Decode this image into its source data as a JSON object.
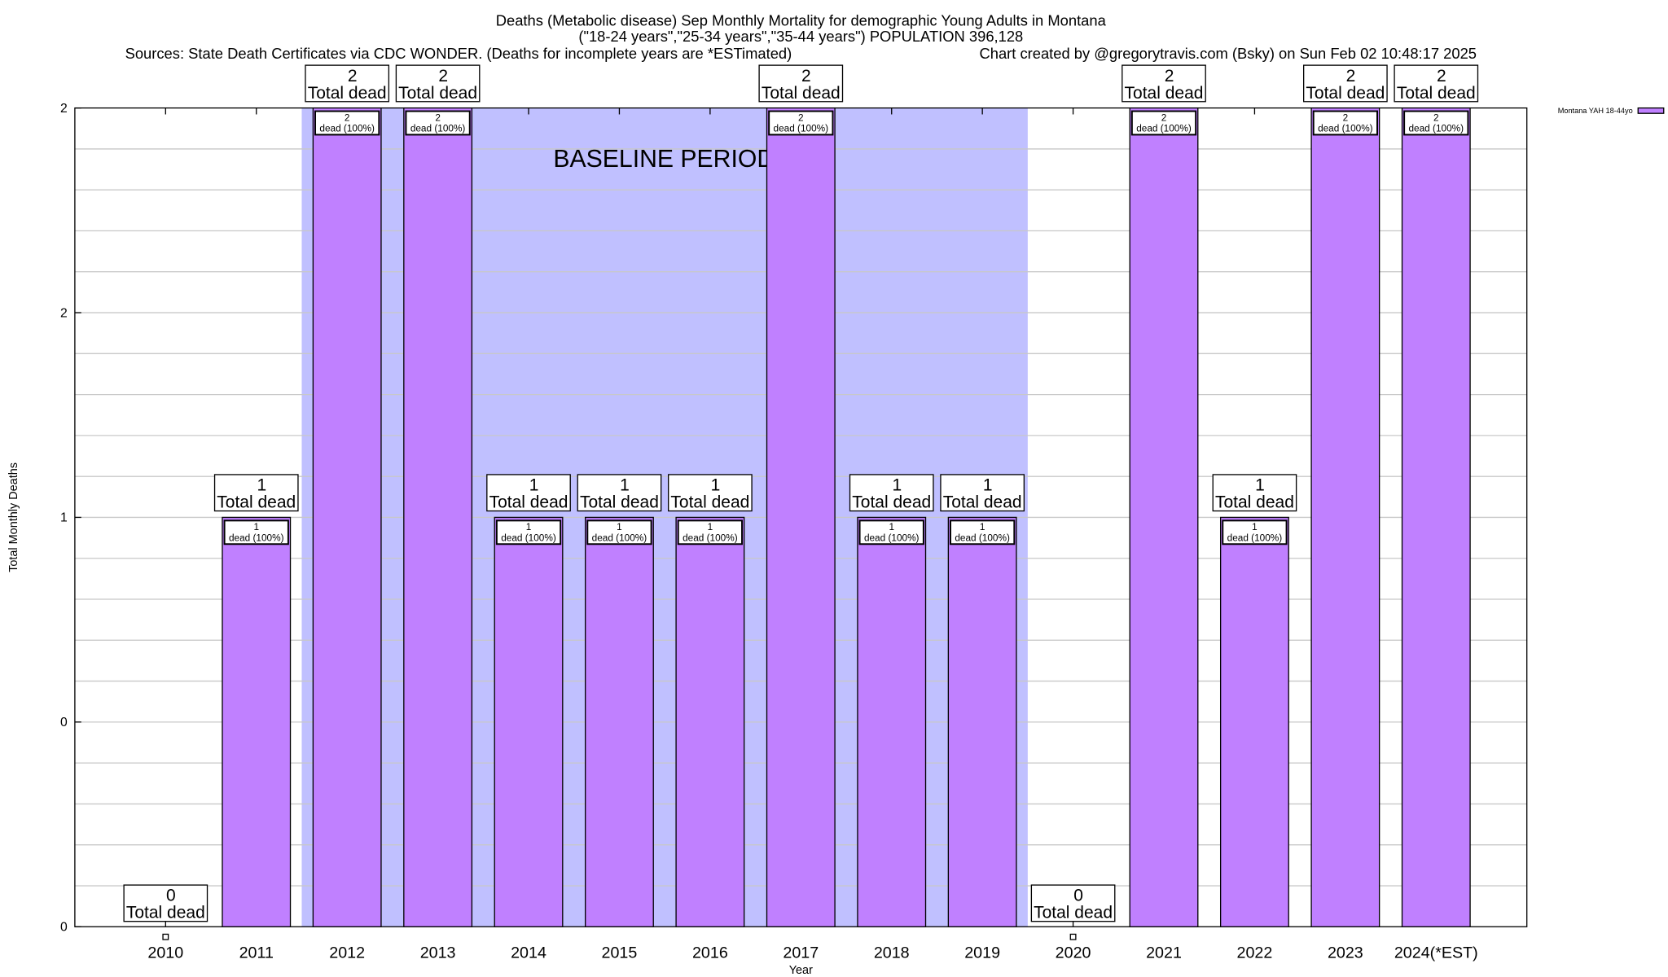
{
  "chart_data": {
    "type": "bar",
    "title": "Deaths (Metabolic disease) Sep Monthly Mortality for demographic Young Adults in Montana",
    "subtitle": "(\"18-24 years\",\"25-34 years\",\"35-44 years\") POPULATION 396,128",
    "sources": "Sources: State Death Certificates via CDC WONDER. (Deaths for incomplete years are *ESTimated)",
    "credit": "Chart created by @gregorytravis.com (Bsky) on Sun Feb 02 10:48:17 2025",
    "xlabel": "Year",
    "ylabel": "Total Monthly Deaths",
    "ylim": [
      0,
      2
    ],
    "xlim": [
      2009,
      2025
    ],
    "grid": true,
    "y_ticks": [
      {
        "value": 0,
        "label": "0"
      },
      {
        "value": 0.5,
        "label": "0"
      },
      {
        "value": 1,
        "label": "1"
      },
      {
        "value": 1.5,
        "label": "2"
      },
      {
        "value": 2,
        "label": "2"
      }
    ],
    "categories": [
      "2010",
      "2011",
      "2012",
      "2013",
      "2014",
      "2015",
      "2016",
      "2017",
      "2018",
      "2019",
      "2020",
      "2021",
      "2022",
      "2023",
      "2024(*EST)"
    ],
    "series": [
      {
        "name": "Montana YAH 18-44yo",
        "color": "#c080ff",
        "values": [
          0,
          1,
          2,
          2,
          1,
          1,
          1,
          2,
          1,
          1,
          0,
          2,
          1,
          2,
          2
        ]
      }
    ],
    "total_label_suffix": "Total dead",
    "inner_label_suffix": "dead (100%)",
    "baseline": {
      "label": "BASELINE PERIOD",
      "from": 2011.5,
      "to": 2019.5,
      "color": "#c0c0ff"
    },
    "legend_placement": "top-right"
  }
}
